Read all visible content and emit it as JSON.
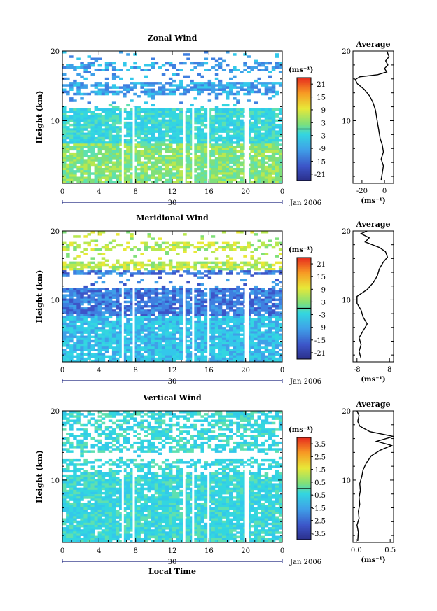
{
  "chart_data": [
    {
      "type": "heatmap",
      "title": "Zonal Wind",
      "ylabel": "Height (km)",
      "yticks": [
        "10",
        "20"
      ],
      "ylim": [
        1,
        20
      ],
      "xticks": [
        "0",
        "4",
        "8",
        "12",
        "16",
        "20",
        "0"
      ],
      "xlim": [
        0,
        24
      ],
      "date_label": "30",
      "month_label": "Jan 2006",
      "colorbar": {
        "unit": "(ms⁻¹)",
        "ticks": [
          "21",
          "15",
          "9",
          "3",
          "-3",
          "-9",
          "-15",
          "-21"
        ],
        "range": [
          -24,
          24
        ]
      },
      "average": {
        "title": "Average",
        "xticks": [
          "-20",
          "0"
        ],
        "xlim": [
          -28,
          8
        ],
        "unit": "(ms⁻¹)",
        "profile": [
          [
            -3,
            1.5
          ],
          [
            -2,
            2.5
          ],
          [
            -1,
            3.5
          ],
          [
            -3,
            4.5
          ],
          [
            -1,
            5.5
          ],
          [
            -2,
            6.5
          ],
          [
            -4,
            7.5
          ],
          [
            -5,
            8.5
          ],
          [
            -6,
            9.5
          ],
          [
            -7,
            10.5
          ],
          [
            -8,
            11.5
          ],
          [
            -10,
            12.5
          ],
          [
            -13,
            13.5
          ],
          [
            -18,
            14.5
          ],
          [
            -24,
            15.3
          ],
          [
            -26,
            15.9
          ],
          [
            -22,
            16.3
          ],
          [
            -6,
            16.6
          ],
          [
            2,
            17.0
          ],
          [
            0,
            17.5
          ],
          [
            3,
            18.0
          ],
          [
            1,
            18.6
          ],
          [
            4,
            19.2
          ],
          [
            2,
            20.0
          ]
        ]
      }
    },
    {
      "type": "heatmap",
      "title": "Meridional Wind",
      "ylabel": "Height (km)",
      "yticks": [
        "10",
        "20"
      ],
      "ylim": [
        1,
        20
      ],
      "xticks": [
        "0",
        "4",
        "8",
        "12",
        "16",
        "20",
        "0"
      ],
      "xlim": [
        0,
        24
      ],
      "date_label": "30",
      "month_label": "Jan 2006",
      "colorbar": {
        "unit": "(ms⁻¹)",
        "ticks": [
          "21",
          "15",
          "9",
          "3",
          "-3",
          "-9",
          "-15",
          "-21"
        ],
        "range": [
          -24,
          24
        ]
      },
      "average": {
        "title": "Average",
        "xticks": [
          "-8",
          "8"
        ],
        "xlim": [
          -10,
          10
        ],
        "unit": "(ms⁻¹)",
        "profile": [
          [
            -6,
            1.5
          ],
          [
            -7,
            2.5
          ],
          [
            -6,
            3.5
          ],
          [
            -7,
            4.5
          ],
          [
            -5,
            5.5
          ],
          [
            -3,
            6.5
          ],
          [
            -5,
            7.5
          ],
          [
            -6,
            8.5
          ],
          [
            -8,
            9.5
          ],
          [
            -8,
            10.5
          ],
          [
            -3,
            11.5
          ],
          [
            0,
            12.5
          ],
          [
            2,
            13.5
          ],
          [
            3,
            14.5
          ],
          [
            5,
            15.5
          ],
          [
            7,
            16.2
          ],
          [
            6,
            17.0
          ],
          [
            3,
            17.6
          ],
          [
            -4,
            18.4
          ],
          [
            -2,
            19.0
          ],
          [
            -6,
            19.6
          ],
          [
            -3,
            20.0
          ]
        ]
      }
    },
    {
      "type": "heatmap",
      "title": "Vertical Wind",
      "ylabel": "Height (km)",
      "yticks": [
        "10",
        "20"
      ],
      "ylim": [
        1,
        20
      ],
      "xticks": [
        "0",
        "4",
        "8",
        "12",
        "16",
        "20",
        "0"
      ],
      "xlim": [
        0,
        24
      ],
      "date_label": "30",
      "month_label": "Jan 2006",
      "xlabel": "Local Time",
      "colorbar": {
        "unit": "(ms⁻¹)",
        "ticks": [
          "3.5",
          "2.5",
          "1.5",
          "0.5",
          "-0.5",
          "-1.5",
          "-2.5",
          "-3.5"
        ],
        "range": [
          -4,
          4
        ]
      },
      "average": {
        "title": "Average",
        "xticks": [
          "0.0",
          "0.5"
        ],
        "xlim": [
          -0.05,
          0.55
        ],
        "unit": "(ms⁻¹)",
        "profile": [
          [
            0.02,
            1.2
          ],
          [
            0.03,
            2.5
          ],
          [
            0.01,
            3.5
          ],
          [
            0.04,
            4.5
          ],
          [
            0.03,
            5.5
          ],
          [
            0.05,
            6.5
          ],
          [
            0.04,
            7.5
          ],
          [
            0.06,
            8.5
          ],
          [
            0.05,
            9.5
          ],
          [
            0.08,
            10.5
          ],
          [
            0.1,
            11.5
          ],
          [
            0.15,
            12.5
          ],
          [
            0.22,
            13.5
          ],
          [
            0.35,
            14.3
          ],
          [
            0.52,
            15.0
          ],
          [
            0.3,
            15.6
          ],
          [
            0.55,
            16.3
          ],
          [
            0.2,
            17.0
          ],
          [
            0.05,
            17.8
          ],
          [
            0.02,
            18.5
          ],
          [
            0.04,
            19.3
          ],
          [
            0.01,
            20.0
          ]
        ]
      }
    }
  ]
}
